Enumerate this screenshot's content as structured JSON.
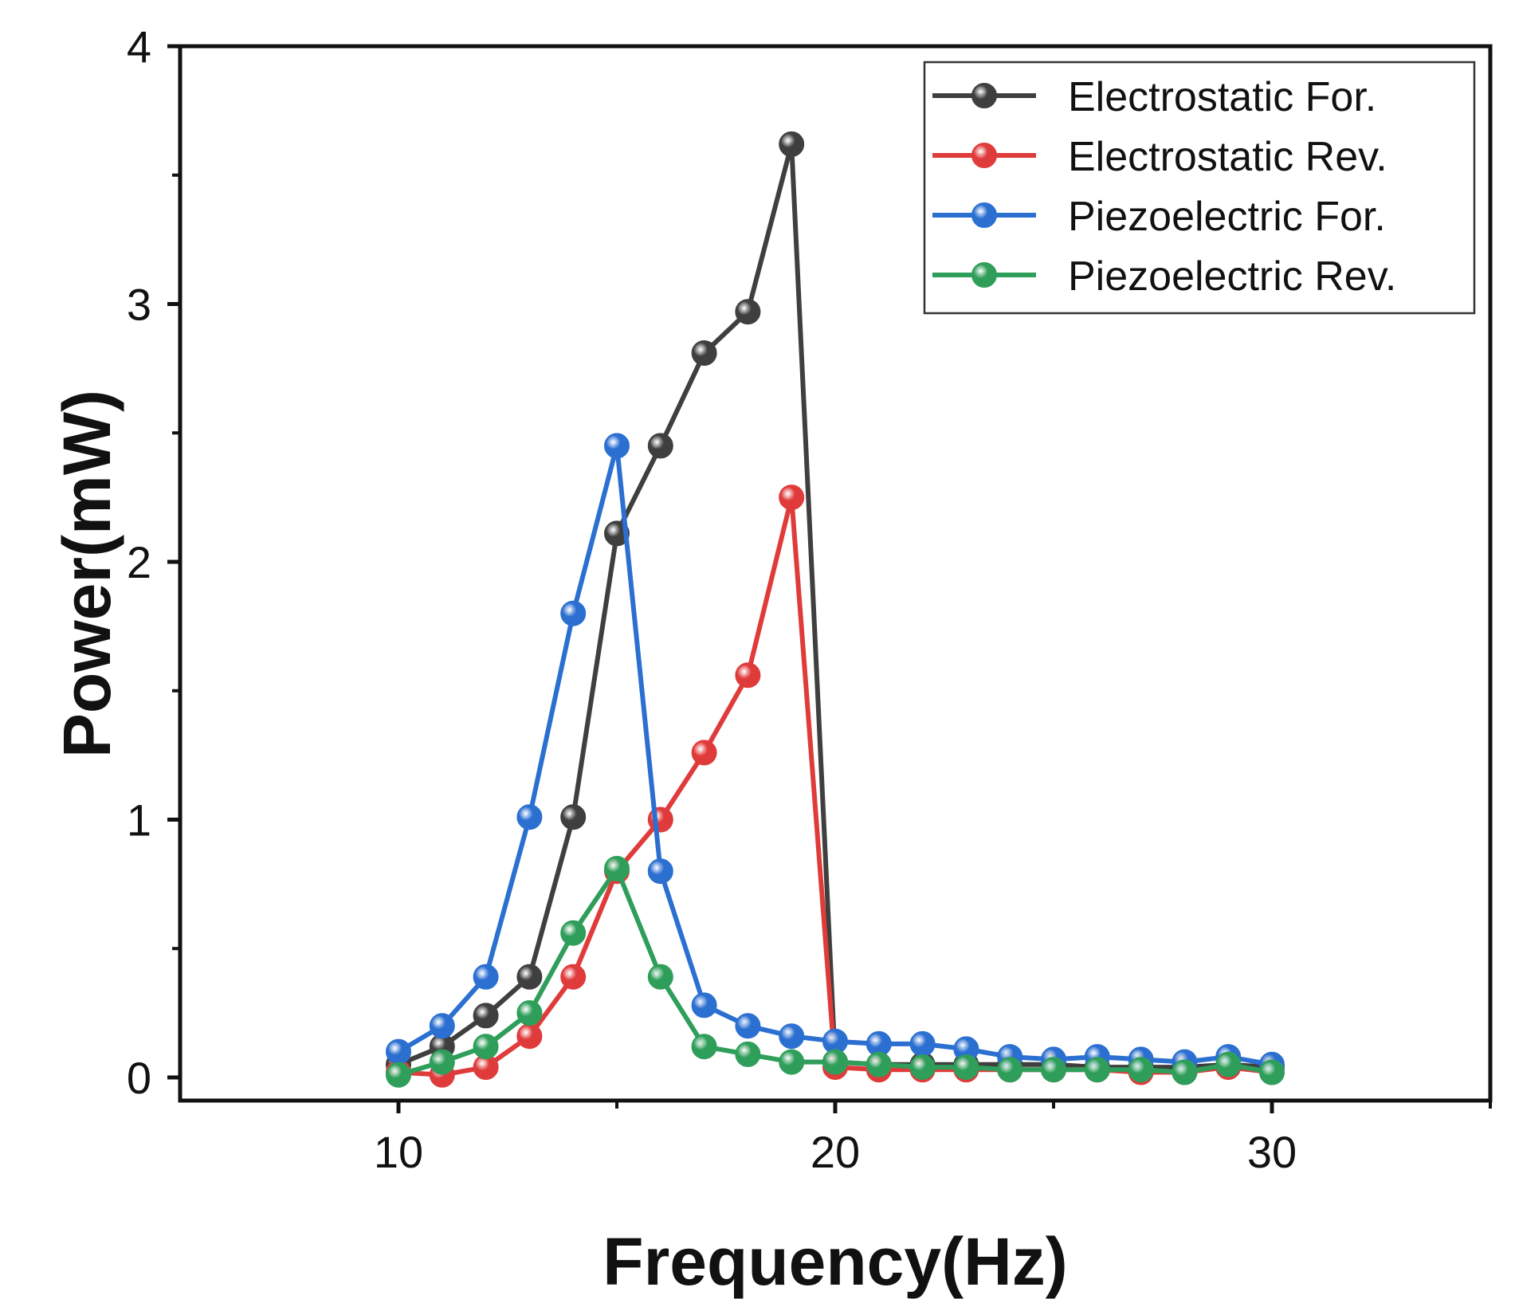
{
  "chart_data": {
    "type": "line",
    "title": "",
    "xlabel": "Frequency(Hz)",
    "ylabel": "Power(mW)",
    "xlim": [
      5,
      35
    ],
    "ylim": [
      -0.1,
      4
    ],
    "x_ticks": [
      "10",
      "20",
      "30"
    ],
    "y_ticks": [
      "0",
      "1",
      "2",
      "3",
      "4"
    ],
    "x_tick_values": [
      10,
      20,
      30
    ],
    "y_tick_values": [
      0,
      1,
      2,
      3,
      4
    ],
    "x_minor_ticks": [
      15,
      25,
      35
    ],
    "y_minor_ticks": [
      0.5,
      1.5,
      2.5,
      3.5
    ],
    "x": [
      10,
      11,
      12,
      13,
      14,
      15,
      16,
      17,
      18,
      19,
      20,
      21,
      22,
      23,
      24,
      25,
      26,
      27,
      28,
      29,
      30
    ],
    "legend_position": "top-right",
    "series": [
      {
        "name": "Electrostatic For.",
        "color": "#3f3f3f",
        "values": [
          0.05,
          0.12,
          0.24,
          0.39,
          1.01,
          2.11,
          2.45,
          2.81,
          2.97,
          3.62,
          0.06,
          0.05,
          0.05,
          0.05,
          0.05,
          0.05,
          0.04,
          0.04,
          0.04,
          0.05,
          0.04
        ]
      },
      {
        "name": "Electrostatic Rev.",
        "color": "#e03b3b",
        "values": [
          0.02,
          0.01,
          0.04,
          0.16,
          0.39,
          0.8,
          1.0,
          1.26,
          1.56,
          2.25,
          0.04,
          0.03,
          0.03,
          0.03,
          0.03,
          0.03,
          0.03,
          0.02,
          0.02,
          0.04,
          0.02
        ]
      },
      {
        "name": "Piezoelectric For.",
        "color": "#2b6fd1",
        "values": [
          0.1,
          0.2,
          0.39,
          1.01,
          1.8,
          2.45,
          0.8,
          0.28,
          0.2,
          0.16,
          0.14,
          0.13,
          0.13,
          0.11,
          0.08,
          0.07,
          0.08,
          0.07,
          0.06,
          0.08,
          0.05
        ]
      },
      {
        "name": "Piezoelectric Rev.",
        "color": "#2f9e5a",
        "values": [
          0.01,
          0.06,
          0.12,
          0.25,
          0.56,
          0.81,
          0.39,
          0.12,
          0.09,
          0.06,
          0.06,
          0.05,
          0.04,
          0.04,
          0.03,
          0.03,
          0.03,
          0.03,
          0.02,
          0.05,
          0.02
        ]
      }
    ]
  }
}
